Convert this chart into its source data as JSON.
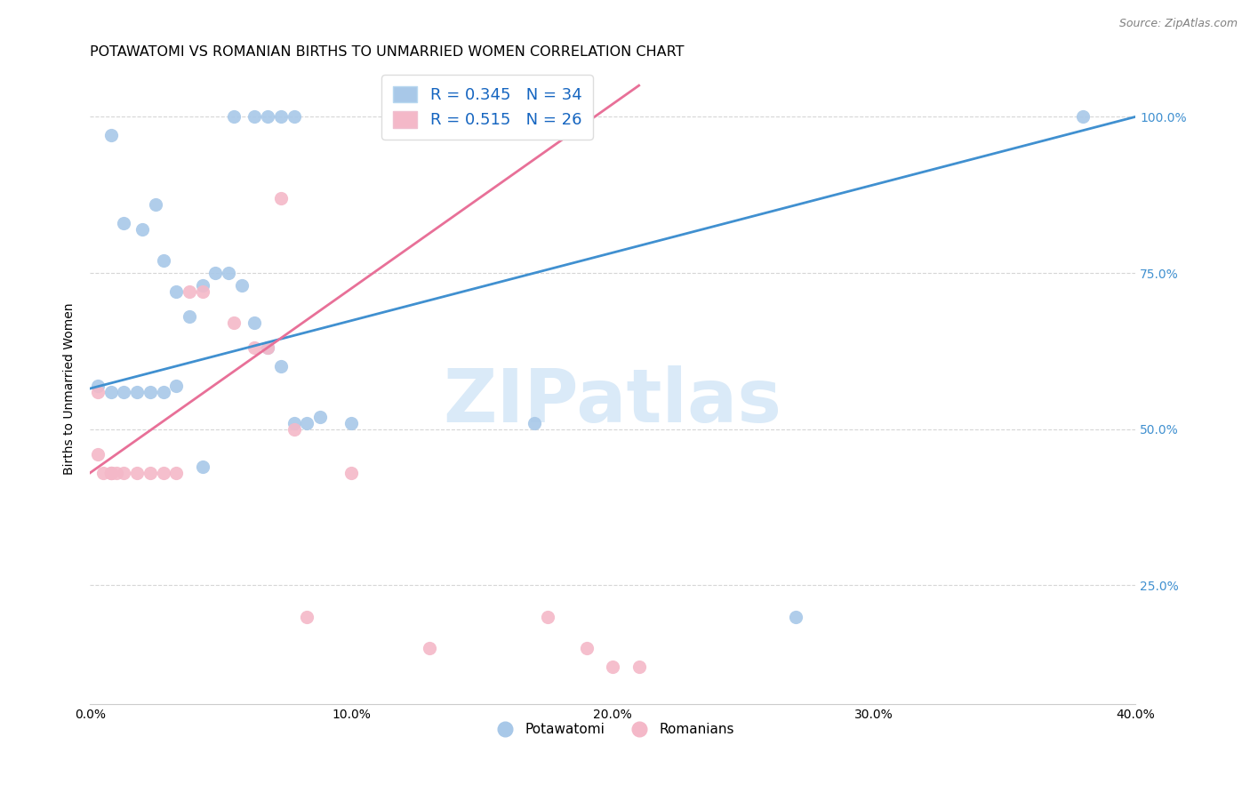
{
  "title": "POTAWATOMI VS ROMANIAN BIRTHS TO UNMARRIED WOMEN CORRELATION CHART",
  "source": "Source: ZipAtlas.com",
  "ylabel": "Births to Unmarried Women",
  "xlabel_ticks": [
    "0.0%",
    "10.0%",
    "20.0%",
    "30.0%",
    "40.0%"
  ],
  "ylabel_ticks": [
    "25.0%",
    "50.0%",
    "75.0%",
    "100.0%"
  ],
  "xmin": 0.0,
  "xmax": 0.4,
  "ymin": 0.06,
  "ymax": 1.07,
  "watermark": "ZIPatlas",
  "legend_r1": "R = 0.345",
  "legend_n1": "N = 34",
  "legend_r2": "R = 0.515",
  "legend_n2": "N = 26",
  "blue_color": "#a8c8e8",
  "pink_color": "#f4b8c8",
  "blue_line_color": "#4090d0",
  "pink_line_color": "#e87098",
  "potawatomi_x": [
    0.008,
    0.025,
    0.055,
    0.063,
    0.068,
    0.073,
    0.078,
    0.013,
    0.02,
    0.028,
    0.033,
    0.038,
    0.043,
    0.048,
    0.053,
    0.058,
    0.063,
    0.068,
    0.073,
    0.078,
    0.083,
    0.088,
    0.1,
    0.17,
    0.27,
    0.38,
    0.003,
    0.008,
    0.013,
    0.018,
    0.023,
    0.028,
    0.033,
    0.043
  ],
  "potawatomi_y": [
    0.97,
    0.86,
    1.0,
    1.0,
    1.0,
    1.0,
    1.0,
    0.83,
    0.82,
    0.77,
    0.72,
    0.68,
    0.73,
    0.75,
    0.75,
    0.73,
    0.67,
    0.63,
    0.6,
    0.51,
    0.51,
    0.52,
    0.51,
    0.51,
    0.2,
    1.0,
    0.57,
    0.56,
    0.56,
    0.56,
    0.56,
    0.56,
    0.57,
    0.44
  ],
  "romanian_x": [
    0.003,
    0.003,
    0.005,
    0.008,
    0.008,
    0.008,
    0.01,
    0.013,
    0.018,
    0.023,
    0.028,
    0.033,
    0.038,
    0.043,
    0.055,
    0.063,
    0.068,
    0.073,
    0.078,
    0.083,
    0.1,
    0.13,
    0.175,
    0.19,
    0.2,
    0.21
  ],
  "romanian_y": [
    0.56,
    0.46,
    0.43,
    0.43,
    0.43,
    0.43,
    0.43,
    0.43,
    0.43,
    0.43,
    0.43,
    0.43,
    0.72,
    0.72,
    0.67,
    0.63,
    0.63,
    0.87,
    0.5,
    0.2,
    0.43,
    0.15,
    0.2,
    0.15,
    0.12,
    0.12
  ],
  "blue_trend_x": [
    0.0,
    0.4
  ],
  "blue_trend_y": [
    0.565,
    1.0
  ],
  "pink_trend_x": [
    0.0,
    0.21
  ],
  "pink_trend_y": [
    0.43,
    1.05
  ],
  "bg_color": "#ffffff",
  "grid_color": "#cccccc",
  "title_fontsize": 11.5,
  "label_fontsize": 10,
  "tick_fontsize": 10,
  "watermark_color": "#daeaf8",
  "watermark_fontsize": 60
}
